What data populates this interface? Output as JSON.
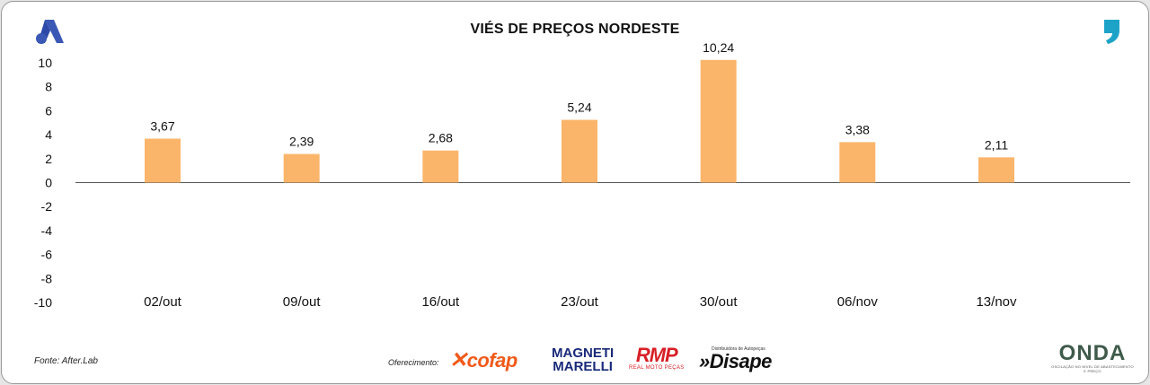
{
  "chart_data": {
    "type": "bar",
    "title": "VIÉS DE PREÇOS NORDESTE",
    "categories": [
      "02/out",
      "09/out",
      "16/out",
      "23/out",
      "30/out",
      "06/nov",
      "13/nov"
    ],
    "values": [
      3.67,
      2.39,
      2.68,
      5.24,
      10.24,
      3.38,
      2.11
    ],
    "data_labels": [
      "3,67",
      "2,39",
      "2,68",
      "5,24",
      "10,24",
      "3,38",
      "2,11"
    ],
    "ylim": [
      -10,
      10
    ],
    "yticks": [
      10,
      8,
      6,
      4,
      2,
      0,
      -2,
      -4,
      -6,
      -8,
      -10
    ],
    "ytick_labels": [
      "10",
      "8",
      "6",
      "4",
      "2",
      "0",
      "-2",
      "-4",
      "-6",
      "-8",
      "-10"
    ],
    "xlabel": "",
    "ylabel": "",
    "grid": false,
    "legend": "none",
    "bar_color": "#fbb56b"
  },
  "footer": {
    "source": "Fonte: After.Lab",
    "offer_label": "Oferecimento:"
  },
  "sponsors": {
    "cofap": "cofap",
    "magneti_line1": "MAGNETI",
    "magneti_line2": "MARELLI",
    "rmp": "RMP",
    "rmp_sub": "REAL MOTO PEÇAS",
    "disape_sub": "Distribuidora de Autopeças",
    "disape": "Disape",
    "onda": "ONDA",
    "onda_sub": "OSCILAÇÃO NO NÍVEL DE ABASTECIMENTO E PREÇO"
  },
  "colors": {
    "brand_blue": "#3a58b4",
    "quote_teal": "#1ea3c8",
    "axis": "#555555"
  },
  "icons": {
    "top_left": "after-lab-logo-icon",
    "top_right": "quote-mark-icon"
  }
}
